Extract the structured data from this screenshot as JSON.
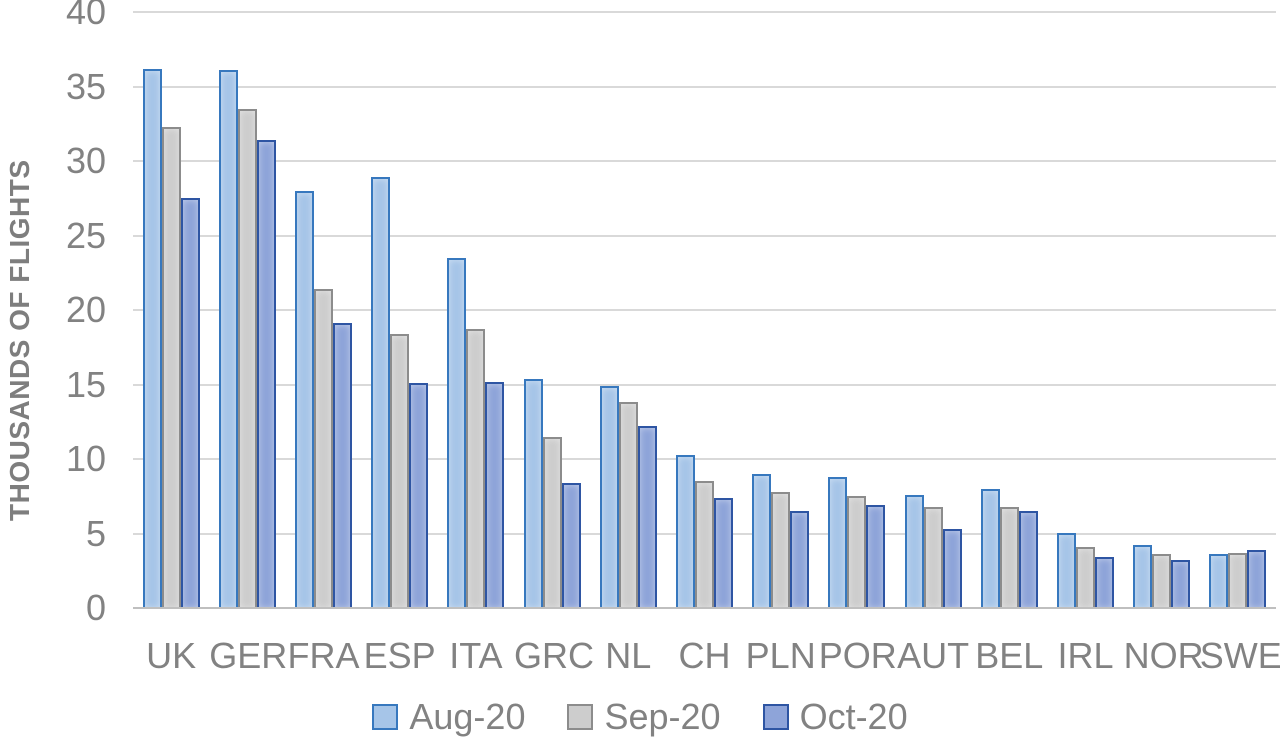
{
  "chart_data": {
    "type": "bar",
    "title": "",
    "xlabel": "",
    "ylabel": "THOUSANDS OF FLIGHTS",
    "ylim": [
      0,
      40
    ],
    "yticks": [
      40,
      35,
      30,
      25,
      20,
      15,
      10,
      5,
      0
    ],
    "grid": true,
    "legend_position": "bottom",
    "categories": [
      "UK",
      "GER",
      "FRA",
      "ESP",
      "ITA",
      "GRC",
      "NL",
      "CH",
      "PLN",
      "POR",
      "AUT",
      "BEL",
      "IRL",
      "NOR",
      "SWE"
    ],
    "series": [
      {
        "name": "Aug-20",
        "fill": "#a6c5e8",
        "border": "#3778be",
        "values": [
          36.2,
          36.1,
          28.0,
          28.9,
          23.5,
          15.4,
          14.9,
          10.3,
          9.0,
          8.8,
          7.6,
          8.0,
          5.0,
          4.2,
          3.6
        ]
      },
      {
        "name": "Sep-20",
        "fill": "#cdcdcd",
        "border": "#8c8c8c",
        "values": [
          32.3,
          33.5,
          21.4,
          18.4,
          18.7,
          11.5,
          13.8,
          8.5,
          7.8,
          7.5,
          6.8,
          6.8,
          4.1,
          3.6,
          3.7
        ]
      },
      {
        "name": "Oct-20",
        "fill": "#8ea4d9",
        "border": "#2e55a3",
        "values": [
          27.5,
          31.4,
          19.1,
          15.1,
          15.2,
          8.4,
          12.2,
          7.4,
          6.5,
          6.9,
          5.3,
          6.5,
          3.4,
          3.2,
          3.9
        ]
      }
    ],
    "colors": {
      "axis_text": "#828282",
      "gridline": "#d9d9d9",
      "axis_line": "#bfbfbf",
      "background": "#ffffff"
    }
  }
}
